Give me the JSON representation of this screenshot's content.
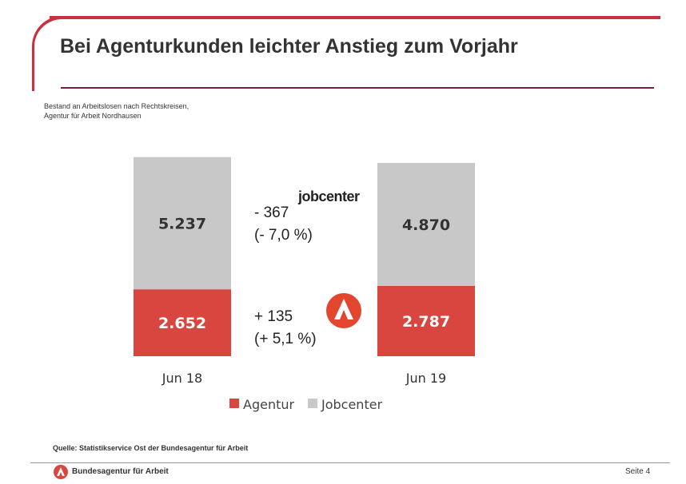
{
  "title": "Bei Agenturkunden leichter Anstieg zum Vorjahr",
  "subtitle_lines": [
    "Bestand an Arbeitslosen nach Rechtskreisen,",
    "Agentur für Arbeit Nordhausen"
  ],
  "source": "Quelle: Statistikservice Ost der Bundesagentur für Arbeit",
  "footer": {
    "brand": "Bundesagentur für Arbeit",
    "page": "Seite 4"
  },
  "jobcenter_logo_text": "jobcenter",
  "colors": {
    "agentur": "#d9453f",
    "jobcenter": "#c8c8c8",
    "accent": "#c8313d"
  },
  "chart_data": {
    "type": "bar",
    "stacked": true,
    "categories": [
      "Jun 18",
      "Jun 19"
    ],
    "series": [
      {
        "name": "Agentur",
        "values": [
          2652,
          2787
        ],
        "labels": [
          "2.652",
          "2.787"
        ]
      },
      {
        "name": "Jobcenter",
        "values": [
          5237,
          4870
        ],
        "labels": [
          "5.237",
          "4.870"
        ]
      }
    ],
    "annotations": {
      "jobcenter": [
        "- 367",
        "(- 7,0 %)"
      ],
      "agentur": [
        "+ 135",
        "(+ 5,1 %)"
      ]
    },
    "legend": "bottom",
    "grid": false
  }
}
